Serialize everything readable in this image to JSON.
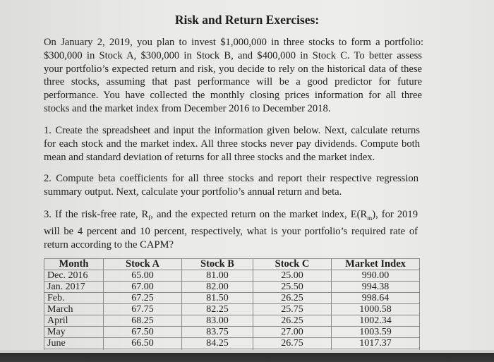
{
  "title": "Risk and Return Exercises:",
  "intro": [
    "On January 2, 2019, you plan to invest $1,000,000 in three stocks to form a portfolio:",
    "$300,000 in Stock A, $300,000 in Stock B, and $400,000 in Stock C. To better assess",
    "your portfolio’s expected return and risk, you decide to rely on the historical data of these",
    "three stocks, assuming that past performance will be a good predictor for future",
    "performance. You have collected the monthly closing prices information for all three",
    "stocks and the market index from December 2016 to December 2018."
  ],
  "q1": [
    "1.  Create the spreadsheet and input the information given below. Next, calculate returns",
    "for each stock and the market index. All three stocks never pay dividends. Compute both",
    "mean and standard deviation of returns for all three stocks and the market index."
  ],
  "q2": [
    "2.  Compute beta coefficients for all three stocks and report their respective regression",
    "summary output. Next, calculate your portfolio’s annual return and beta."
  ],
  "q3": {
    "l1a": "3.  If the risk-free rate, R",
    "l1sub1": "f",
    "l1b": ", and the expected return on the market index, E(R",
    "l1sub2": "m",
    "l1c": "), for 2019",
    "l2": "will be 4 percent and 10 percent, respectively, what is your portfolio’s required rate of",
    "l3": "return according to the CAPM?"
  },
  "table": {
    "headers": [
      "Month",
      "Stock A",
      "Stock B",
      "Stock C",
      "Market Index"
    ],
    "rows": [
      [
        "Dec. 2016",
        "65.00",
        "81.00",
        "25.00",
        "990.00"
      ],
      [
        "Jan. 2017",
        "67.00",
        "82.00",
        "25.50",
        "994.38"
      ],
      [
        "Feb.",
        "67.25",
        "81.50",
        "26.25",
        "998.64"
      ],
      [
        "March",
        "67.75",
        "82.25",
        "25.75",
        "1000.58"
      ],
      [
        "April",
        "68.25",
        "83.00",
        "26.25",
        "1002.34"
      ],
      [
        "May",
        "67.50",
        "83.75",
        "27.00",
        "1003.59"
      ],
      [
        "June",
        "66.50",
        "84.25",
        "26.75",
        "1017.37"
      ]
    ]
  }
}
